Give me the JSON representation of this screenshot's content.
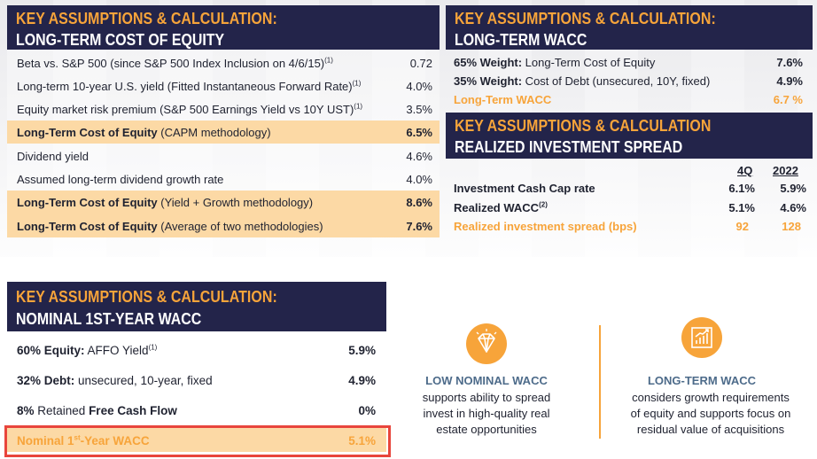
{
  "cost_of_equity": {
    "title_line1": "KEY ASSUMPTIONS & CALCULATION:",
    "title_line2": "LONG-TERM COST OF EQUITY",
    "rows": [
      {
        "label": "Beta vs. S&P 500 (since S&P 500 Index Inclusion on 4/6/15)",
        "sup": "(1)",
        "value": "0.72"
      },
      {
        "label": "Long-term 10-year U.S. yield (Fitted Instantaneous Forward Rate)",
        "sup": "(1)",
        "value": "4.0%"
      },
      {
        "label": "Equity market risk premium (S&P 500 Earnings Yield vs 10Y UST)",
        "sup": "(1)",
        "value": "3.5%"
      },
      {
        "bold": "Long-Term Cost of Equity",
        "label": " (CAPM methodology)",
        "value": "6.5%"
      },
      {
        "label": "Dividend yield",
        "value": "4.6%"
      },
      {
        "label": "Assumed long-term dividend growth rate",
        "value": "4.0%"
      },
      {
        "bold": "Long-Term Cost of Equity",
        "label": " (Yield + Growth methodology)",
        "value": "8.6%"
      },
      {
        "bold": "Long-Term Cost of Equity",
        "label": " (Average of two methodologies)",
        "value": "7.6%"
      }
    ]
  },
  "wacc": {
    "title_line1": "KEY ASSUMPTIONS & CALCULATION:",
    "title_line2": "LONG-TERM WACC",
    "rows": [
      {
        "bold": "65% Weight:",
        "label": " Long-Term Cost of Equity",
        "value": "7.6%"
      },
      {
        "bold": "35% Weight:",
        "label": " Cost of Debt (unsecured, 10Y, fixed)",
        "value": "4.9%"
      },
      {
        "label": "Long-Term WACC",
        "value": "6.7 %"
      }
    ]
  },
  "spread": {
    "title_line1": "KEY ASSUMPTIONS & CALCULATION",
    "title_line2": "REALIZED INVESTMENT SPREAD",
    "col1": "4Q",
    "col2": "2022",
    "rows": [
      {
        "label": "Investment Cash Cap rate",
        "v1": "6.1%",
        "v2": "5.9%"
      },
      {
        "label": "Realized WACC",
        "sup": "(2)",
        "v1": "5.1%",
        "v2": "4.6%"
      },
      {
        "label": "Realized investment spread (bps)",
        "v1": "92",
        "v2": "128"
      }
    ]
  },
  "nominal": {
    "title_line1": "KEY ASSUMPTIONS & CALCULATION:",
    "title_line2": "NOMINAL 1ST-YEAR WACC",
    "rows": [
      {
        "bold": "60% Equity:",
        "label": " AFFO Yield",
        "sup": "(1)",
        "value": "5.9%"
      },
      {
        "bold": "32% Debt:",
        "label": " unsecured, 10-year, fixed",
        "value": "4.9%"
      },
      {
        "bold": "8%",
        "label": " Retained ",
        "bold2": "Free Cash Flow",
        "value": "0%"
      }
    ],
    "total_pre": "Nominal 1",
    "total_sup": "st",
    "total_post": "-Year WACC",
    "total_value": "5.1%"
  },
  "features": [
    {
      "icon": "diamond-icon",
      "title": "LOW NOMINAL WACC",
      "desc1": "supports ability to spread",
      "desc2": "invest in high-quality real",
      "desc3": "estate opportunities"
    },
    {
      "icon": "growth-chart-icon",
      "title": "LONG-TERM WACC",
      "desc1": "considers growth requirements",
      "desc2": "of equity and supports focus on",
      "desc3": "residual value of acquisitions"
    }
  ],
  "colors": {
    "navy": "#23244a",
    "orange": "#f7a43a",
    "highlight": "#fcd9a5",
    "red_box": "#e8453c"
  }
}
